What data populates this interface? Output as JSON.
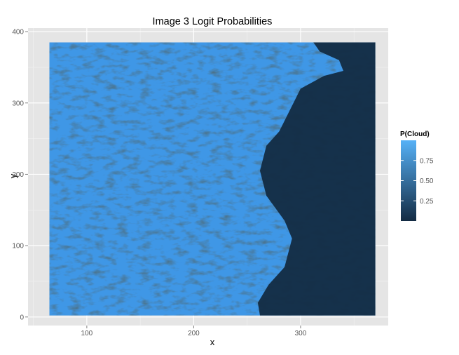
{
  "chart_data": {
    "type": "heatmap",
    "title": "Image 3 Logit Probabilities",
    "xlabel": "x",
    "ylabel": "y",
    "xlim": [
      45,
      382
    ],
    "ylim": [
      -12,
      405
    ],
    "x_ticks": [
      100,
      200,
      300
    ],
    "y_ticks": [
      0,
      100,
      200,
      300,
      400
    ],
    "x_tick_labels": [
      "100",
      "200",
      "300"
    ],
    "y_tick_labels": [
      "0",
      "100",
      "200",
      "300",
      "400"
    ],
    "grid": true,
    "panel_background": "#e5e5e5",
    "legend": {
      "title": "P(Cloud)",
      "placement": "right",
      "breaks": [
        0.25,
        0.5,
        0.75
      ],
      "labels": [
        "0.25",
        "0.50",
        "0.75"
      ],
      "range": [
        0.0,
        1.0
      ],
      "low_color": "#132b43",
      "high_color": "#56b1f7"
    },
    "raster_extent": {
      "x": [
        65,
        370
      ],
      "y": [
        2,
        385
      ]
    },
    "clear_sky_region_approx": [
      [
        370,
        385
      ],
      [
        312,
        385
      ],
      [
        318,
        372
      ],
      [
        336,
        360
      ],
      [
        340,
        345
      ],
      [
        322,
        338
      ],
      [
        300,
        320
      ],
      [
        290,
        290
      ],
      [
        280,
        260
      ],
      [
        268,
        240
      ],
      [
        262,
        205
      ],
      [
        268,
        170
      ],
      [
        285,
        135
      ],
      [
        292,
        110
      ],
      [
        285,
        70
      ],
      [
        270,
        45
      ],
      [
        260,
        20
      ],
      [
        262,
        2
      ],
      [
        370,
        2
      ]
    ]
  }
}
